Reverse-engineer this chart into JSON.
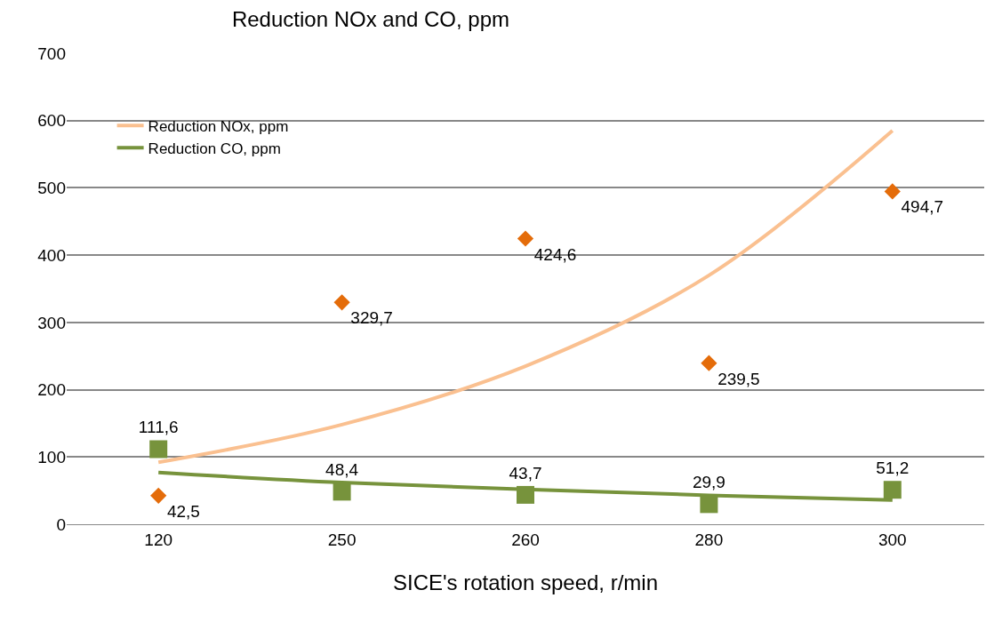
{
  "chart_data": {
    "type": "scatter",
    "title": "Reduction NOx and CO, ppm",
    "xlabel": "SICE's rotation speed, r/min",
    "categories": [
      "120",
      "250",
      "260",
      "280",
      "300"
    ],
    "series": [
      {
        "type": "line",
        "name": "Reduction NOx, ppm",
        "color": "#fac090",
        "values": [
          92,
          148,
          235,
          370,
          585
        ],
        "marker": "none"
      },
      {
        "type": "line",
        "name": "Reduction CO, ppm",
        "color": "#77933c",
        "values": [
          77,
          62,
          52,
          43,
          36
        ],
        "marker": "none"
      },
      {
        "color": "#e46c0a",
        "values": [
          42.5,
          329.7,
          424.6,
          239.5,
          494.7
        ],
        "marker": "diamond",
        "value_labels": [
          "42,5",
          "329,7",
          "424,6",
          "239,5",
          "494,7"
        ]
      },
      {
        "color": "#77933c",
        "values": [
          111.6,
          48.4,
          43.7,
          29.9,
          51.2
        ],
        "marker": "square",
        "value_labels": [
          "111,6",
          "48,4",
          "43,7",
          "29,9",
          "51,2"
        ]
      }
    ],
    "ylim": [
      0,
      700
    ],
    "yticks": [
      0,
      100,
      200,
      300,
      400,
      500,
      600,
      700
    ],
    "grid": "y",
    "legend": "top left"
  }
}
